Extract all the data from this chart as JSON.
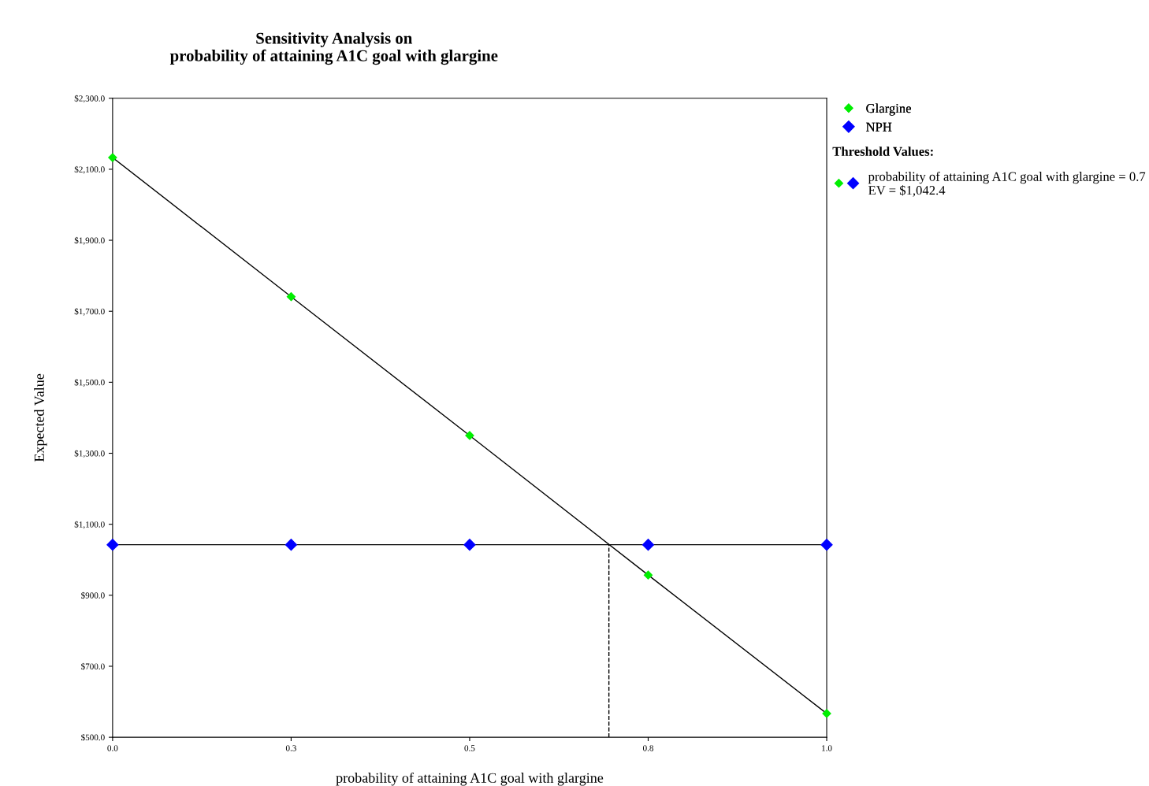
{
  "chart_data": {
    "type": "line",
    "title": "Sensitivity Analysis on\nprobability of attaining A1C goal with glargine",
    "xlabel": "probability of attaining A1C goal with glargine",
    "ylabel": "Expected Value",
    "x": [
      0,
      0.25,
      0.5,
      0.75,
      1.0
    ],
    "series": [
      {
        "name": "Glargine",
        "color": "#00ee00",
        "values": [
          2133,
          1741,
          1350,
          957,
          567
        ]
      },
      {
        "name": "NPH",
        "color": "#0000ff",
        "values": [
          1042.4,
          1042.4,
          1042.4,
          1042.4,
          1042.4
        ]
      }
    ],
    "marker": "diamond",
    "xlim": [
      0,
      1.0
    ],
    "xticks": [
      {
        "value": 0,
        "label": "0.0"
      },
      {
        "value": 0.25,
        "label": "0.3"
      },
      {
        "value": 0.5,
        "label": "0.5"
      },
      {
        "value": 0.75,
        "label": "0.8"
      },
      {
        "value": 1.0,
        "label": "1.0"
      }
    ],
    "ylim": [
      500,
      2300
    ],
    "yticks": [
      {
        "value": 500,
        "label": "$500.0"
      },
      {
        "value": 700,
        "label": "$700.0"
      },
      {
        "value": 900,
        "label": "$900.0"
      },
      {
        "value": 1100,
        "label": "$1,100.0"
      },
      {
        "value": 1300,
        "label": "$1,300.0"
      },
      {
        "value": 1500,
        "label": "$1,500.0"
      },
      {
        "value": 1700,
        "label": "$1,700.0"
      },
      {
        "value": 1900,
        "label": "$1,900.0"
      },
      {
        "value": 2100,
        "label": "$2,100.0"
      },
      {
        "value": 2300,
        "label": "$2,300.0"
      }
    ],
    "ref_lines": [
      {
        "axis": "x",
        "value": 0.695,
        "color": "#000000",
        "line_style": "dashed"
      }
    ],
    "annotations": [
      "Threshold Values:",
      "probability of attaining A1C goal with glargine = 0.7\nEV = $1,042.4"
    ],
    "grid": false,
    "legend": "top right"
  }
}
